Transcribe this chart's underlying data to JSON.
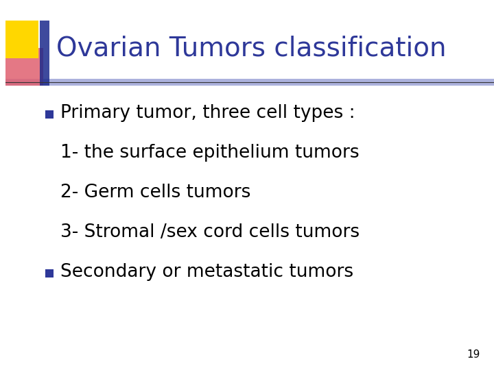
{
  "title": "Ovarian Tumors classification",
  "title_color": "#2E3899",
  "title_fontsize": 28,
  "background_color": "#FFFFFF",
  "bullet_color": "#2E3899",
  "text_color": "#000000",
  "body_fontsize": 19,
  "lines": [
    {
      "text": "Primary tumor, three cell types :",
      "bullet": true
    },
    {
      "text": "1- the surface epithelium tumors",
      "bullet": false
    },
    {
      "text": "2- Germ cells tumors",
      "bullet": false
    },
    {
      "text": "3- Stromal /sex cord cells tumors",
      "bullet": false
    },
    {
      "text": "Secondary or metastatic tumors",
      "bullet": true
    }
  ],
  "slide_number": "19",
  "slide_number_fontsize": 11
}
